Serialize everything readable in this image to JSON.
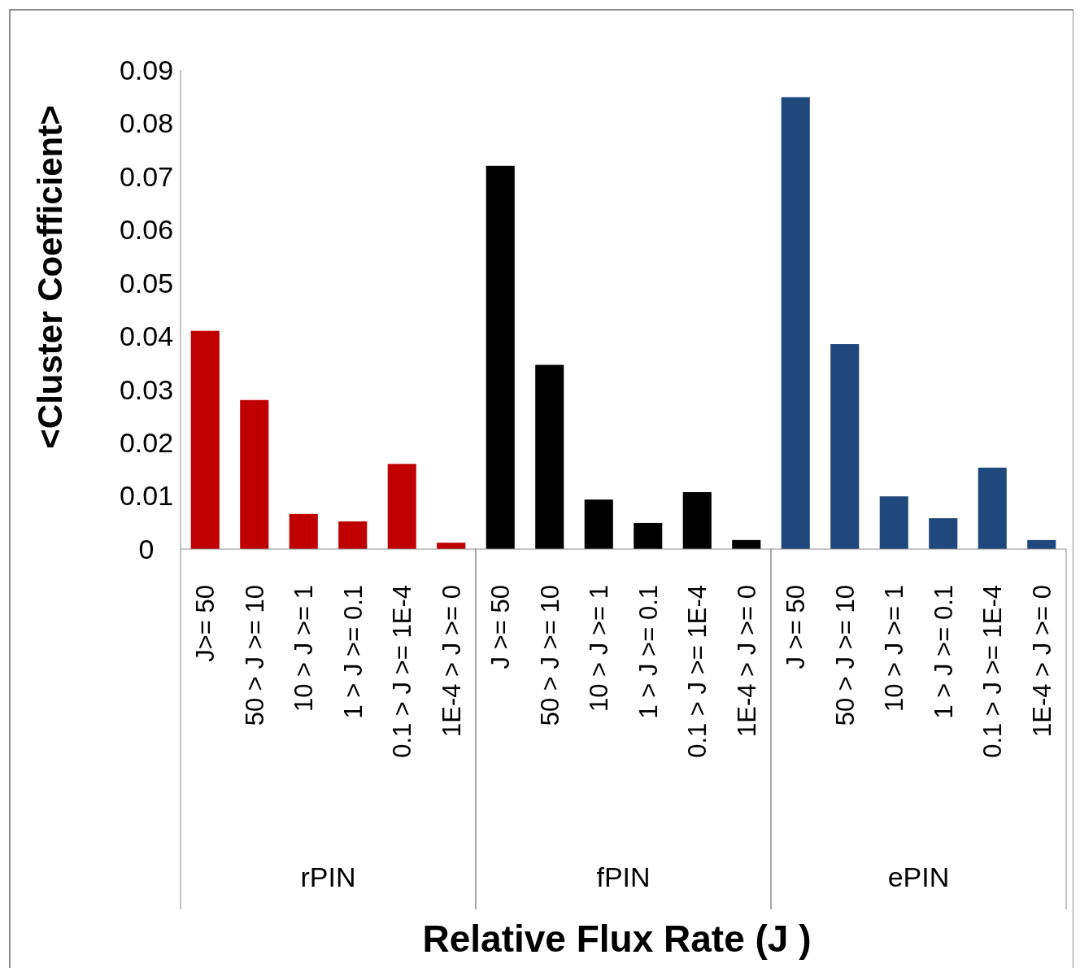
{
  "chart_data": {
    "type": "bar",
    "xlabel": "Relative Flux Rate (J )",
    "ylabel": "<Cluster Coefficient>",
    "categories": [
      "J>= 50",
      "50 > J >= 10",
      "10 > J >= 1",
      "1 > J >= 0.1",
      "0.1 > J >= 1E-4",
      "1E-4 > J >= 0",
      "J >= 50",
      "50 > J >= 10",
      "10 > J >= 1",
      "1 > J >= 0.1",
      "0.1 > J >= 1E-4",
      "1E-4 > J >= 0",
      "J >= 50",
      "50 > J >= 10",
      "10 > J >= 1",
      "1 > J >= 0.1",
      "0.1 > J >= 1E-4",
      "1E-4 > J >= 0"
    ],
    "annotations": [
      "rPIN",
      "fPIN",
      "ePIN"
    ],
    "series": [
      {
        "color": "#c00000",
        "values": [
          0.041,
          0.028,
          0.0066,
          0.0052,
          0.016,
          0.0012,
          null,
          null,
          null,
          null,
          null,
          null,
          null,
          null,
          null,
          null,
          null,
          null
        ]
      },
      {
        "color": "#000000",
        "values": [
          null,
          null,
          null,
          null,
          null,
          null,
          0.072,
          0.0346,
          0.0093,
          0.0049,
          0.0107,
          0.0017,
          null,
          null,
          null,
          null,
          null,
          null
        ]
      },
      {
        "color": "#1f497d",
        "values": [
          null,
          null,
          null,
          null,
          null,
          null,
          null,
          null,
          null,
          null,
          null,
          null,
          0.0849,
          0.0385,
          0.0099,
          0.0058,
          0.0153,
          0.0017
        ]
      }
    ],
    "ylim": [
      0,
      0.09
    ],
    "yticks": [
      {
        "value": 0,
        "label": "0"
      },
      0.01,
      0.02,
      0.03,
      0.04,
      0.05,
      0.06,
      0.07,
      0.08,
      0.09
    ],
    "grid": false
  }
}
